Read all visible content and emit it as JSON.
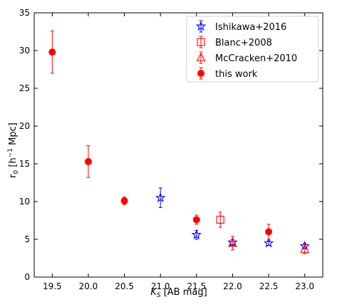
{
  "chart_data": {
    "type": "scatter",
    "title": "",
    "xlabel": "K_S [AB mag]",
    "ylabel": "r_0 [h^-1 Mpc]",
    "xlim": [
      19.25,
      23.25
    ],
    "ylim": [
      0,
      35
    ],
    "xticks": [
      "19.5",
      "20.0",
      "20.5",
      "21.0",
      "21.5",
      "22.0",
      "22.5",
      "23.0"
    ],
    "yticks": [
      "0",
      "5",
      "10",
      "15",
      "20",
      "25",
      "30",
      "35"
    ],
    "grid": false,
    "legend_position": "top-right",
    "series": [
      {
        "name": "Ishikawa+2016",
        "marker": "star-open",
        "color": "#0000ff",
        "points": [
          {
            "x": 21.0,
            "y": 10.5,
            "yerr": 1.3
          },
          {
            "x": 21.5,
            "y": 5.6,
            "yerr": 0.6
          },
          {
            "x": 22.0,
            "y": 4.6,
            "yerr": 0.4
          },
          {
            "x": 22.5,
            "y": 4.5,
            "yerr": 0.3
          },
          {
            "x": 23.0,
            "y": 4.1,
            "yerr": 0.3
          }
        ]
      },
      {
        "name": "Blanc+2008",
        "marker": "square-open",
        "color": "#ff0000",
        "points": [
          {
            "x": 21.83,
            "y": 7.6,
            "yerr": 1.0
          }
        ]
      },
      {
        "name": "McCracken+2010",
        "marker": "triangle-open",
        "color": "#ff0000",
        "points": [
          {
            "x": 22.0,
            "y": 4.5,
            "yerr": 0.9
          },
          {
            "x": 23.0,
            "y": 3.7,
            "yerr": 0.6
          }
        ]
      },
      {
        "name": "this work",
        "marker": "circle-filled",
        "color": "#ff0000",
        "points": [
          {
            "x": 19.5,
            "y": 29.8,
            "yerr": 2.8
          },
          {
            "x": 20.0,
            "y": 15.3,
            "yerr": 2.1
          },
          {
            "x": 20.5,
            "y": 10.1,
            "yerr": 0.5
          },
          {
            "x": 21.5,
            "y": 7.6,
            "yerr": 0.6
          },
          {
            "x": 22.5,
            "y": 6.0,
            "yerr": 1.0
          }
        ]
      }
    ]
  }
}
